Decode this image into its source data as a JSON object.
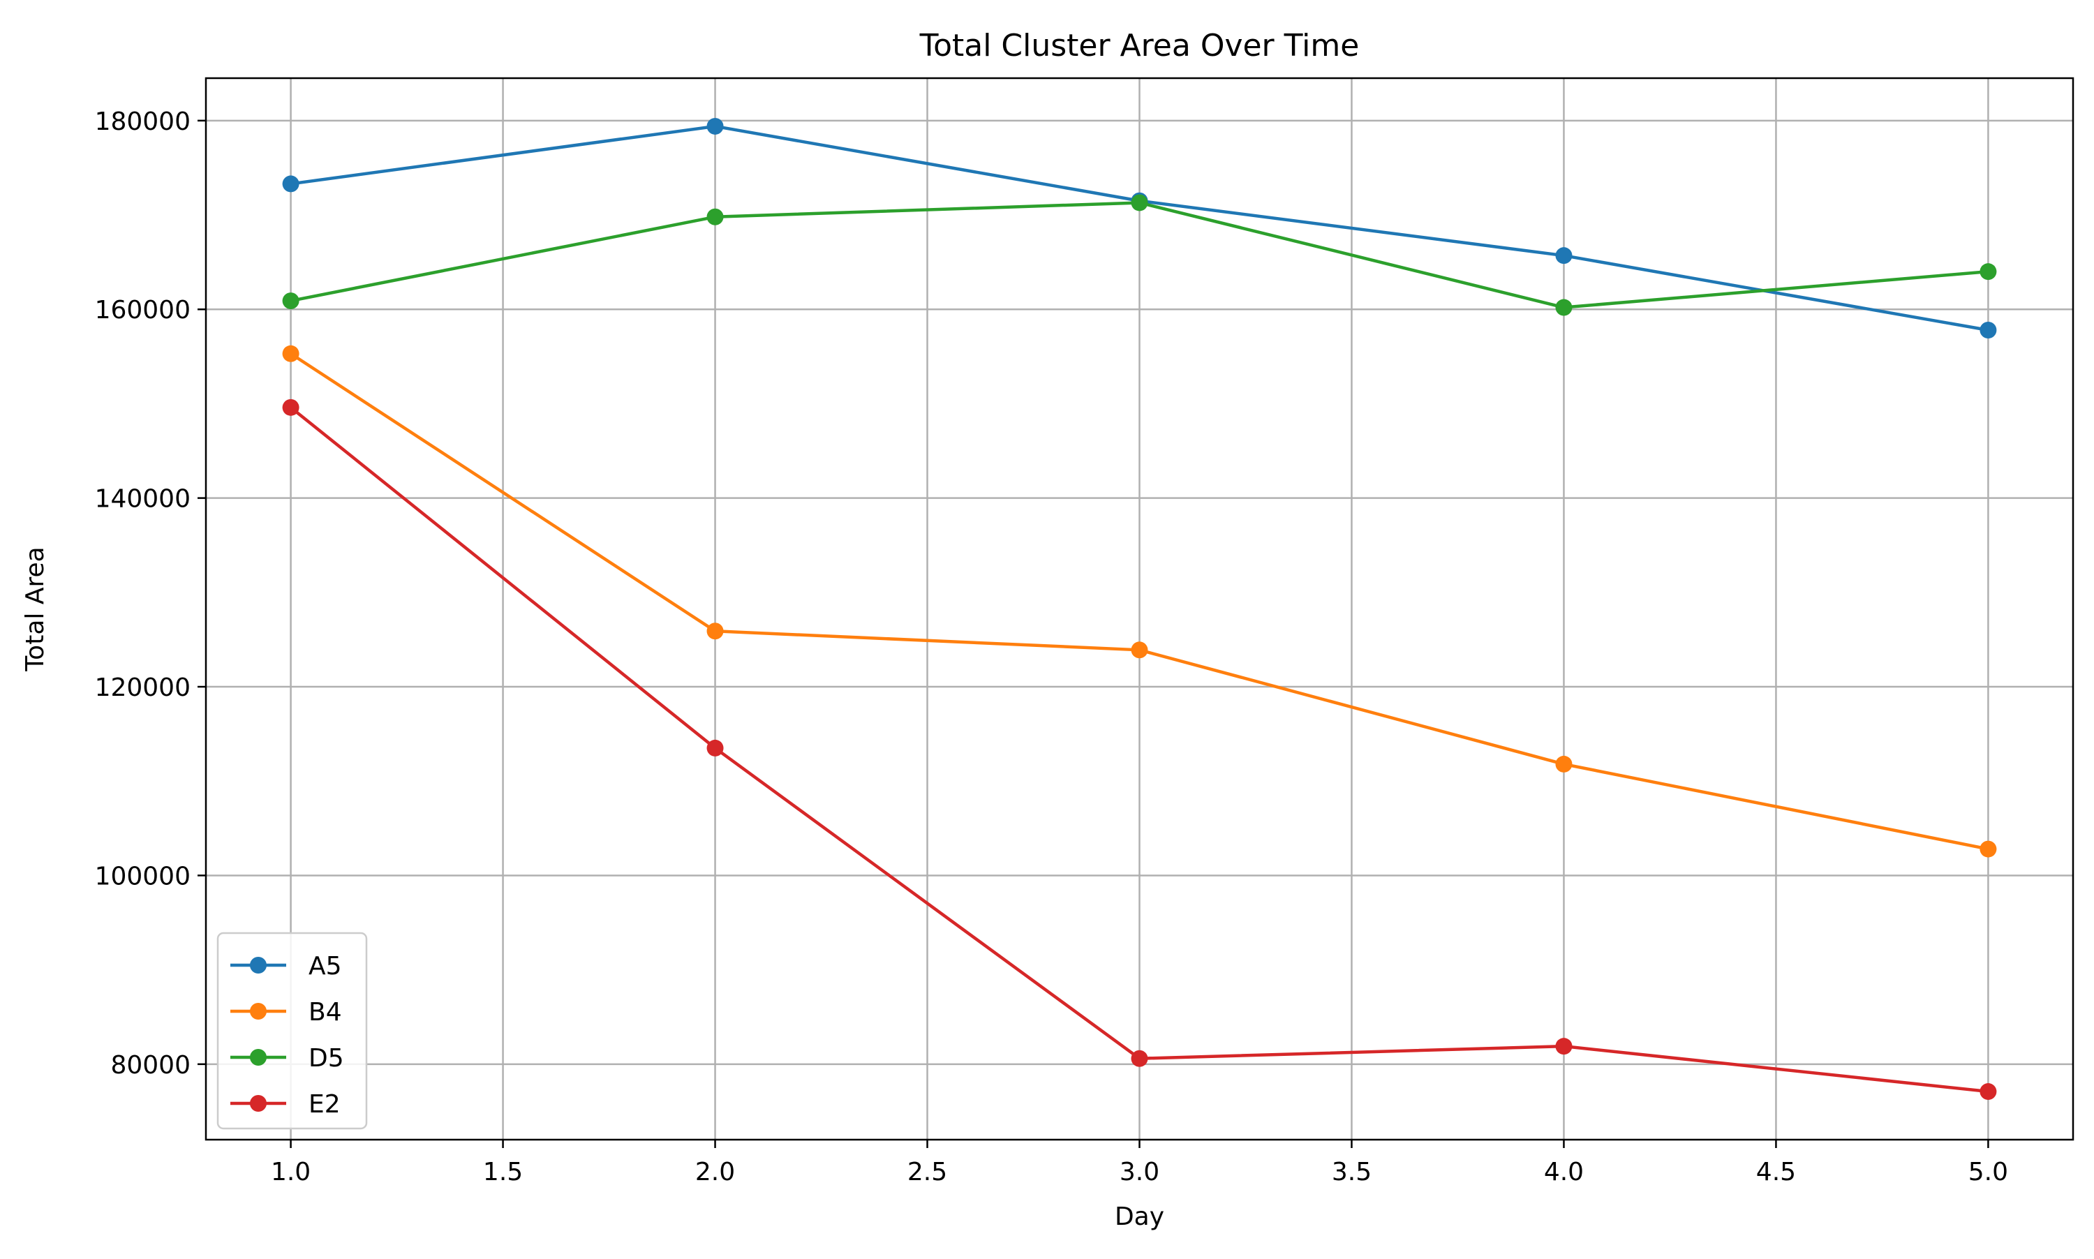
{
  "chart_data": {
    "type": "line",
    "title": "Total Cluster Area Over Time",
    "xlabel": "Day",
    "ylabel": "Total Area",
    "x": [
      1,
      2,
      3,
      4,
      5
    ],
    "xlim": [
      0.8,
      5.2
    ],
    "ylim": [
      72000,
      184500
    ],
    "x_ticks": [
      1.0,
      1.5,
      2.0,
      2.5,
      3.0,
      3.5,
      4.0,
      4.5,
      5.0
    ],
    "x_tick_labels": [
      "1.0",
      "1.5",
      "2.0",
      "2.5",
      "3.0",
      "3.5",
      "4.0",
      "4.5",
      "5.0"
    ],
    "y_ticks": [
      80000,
      100000,
      120000,
      140000,
      160000,
      180000
    ],
    "y_tick_labels": [
      "80000",
      "100000",
      "120000",
      "140000",
      "160000",
      "180000"
    ],
    "grid": true,
    "legend_position": "lower-left",
    "series": [
      {
        "name": "A5",
        "color": "#1f77b4",
        "values": [
          173300,
          179400,
          171500,
          165700,
          157800
        ]
      },
      {
        "name": "B4",
        "color": "#ff7f0e",
        "values": [
          155300,
          125900,
          123900,
          111800,
          102800
        ]
      },
      {
        "name": "D5",
        "color": "#2ca02c",
        "values": [
          160900,
          169800,
          171300,
          160200,
          164000
        ]
      },
      {
        "name": "E2",
        "color": "#d62728",
        "values": [
          149600,
          113500,
          80600,
          81900,
          77100
        ]
      }
    ]
  }
}
